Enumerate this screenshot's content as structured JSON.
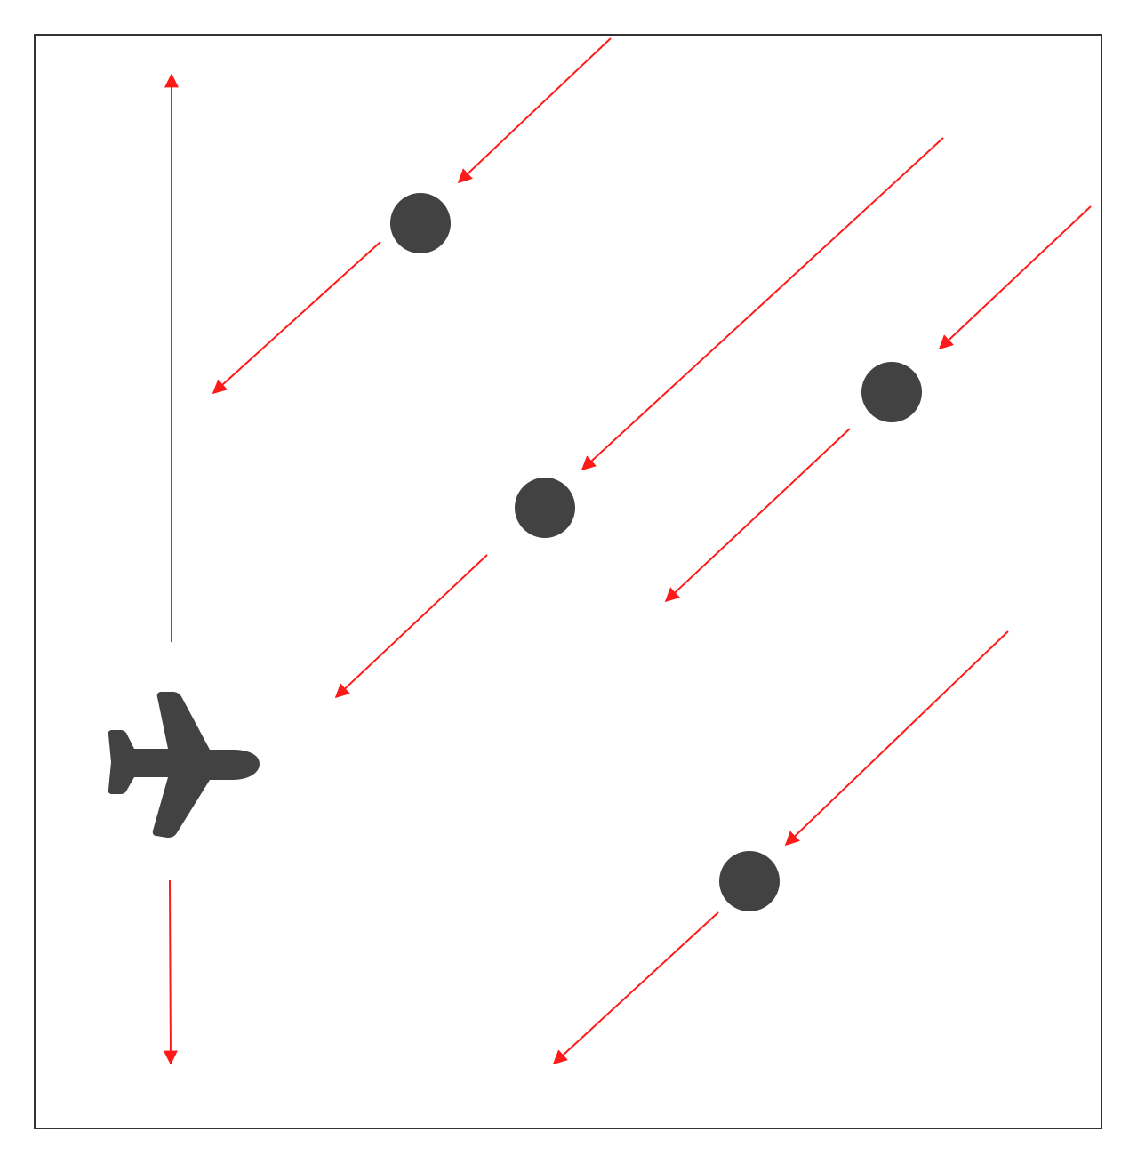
{
  "diagram": {
    "colors": {
      "arrow": "#ff1a1a",
      "marker": "#424242",
      "frame": "#333333",
      "background": "#ffffff"
    },
    "icons": {
      "aircraft": "airplane-icon",
      "object": "circle-marker"
    },
    "objects": {
      "aircraft": {
        "heading": "right"
      },
      "dots": {
        "count": 4
      }
    }
  }
}
